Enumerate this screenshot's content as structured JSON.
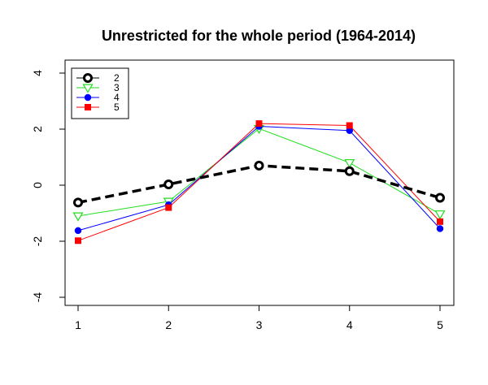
{
  "chart_data": {
    "type": "line",
    "title": "Unrestricted for the whole period (1964-2014)",
    "xlabel": "",
    "ylabel": "",
    "x": [
      1,
      2,
      3,
      4,
      5
    ],
    "xlim": [
      1,
      5
    ],
    "ylim": [
      -4,
      4
    ],
    "x_ticks": [
      "1",
      "2",
      "3",
      "4",
      "5"
    ],
    "y_ticks": [
      "-4",
      "-2",
      "0",
      "2",
      "4"
    ],
    "grid": false,
    "legend_position": "top-left",
    "series": [
      {
        "name": "2",
        "values": [
          -0.62,
          0.03,
          0.7,
          0.5,
          -0.45
        ],
        "color": "#000000",
        "line_style": "dashed",
        "marker": "open-circle"
      },
      {
        "name": "3",
        "values": [
          -1.1,
          -0.58,
          2.02,
          0.8,
          -1.03
        ],
        "color": "#22dd22",
        "line_style": "solid",
        "marker": "open-triangle-down"
      },
      {
        "name": "4",
        "values": [
          -1.62,
          -0.7,
          2.1,
          1.95,
          -1.55
        ],
        "color": "#0000ff",
        "line_style": "solid",
        "marker": "filled-circle"
      },
      {
        "name": "5",
        "values": [
          -1.98,
          -0.8,
          2.2,
          2.13,
          -1.3
        ],
        "color": "#ff0000",
        "line_style": "solid",
        "marker": "filled-square"
      }
    ]
  }
}
